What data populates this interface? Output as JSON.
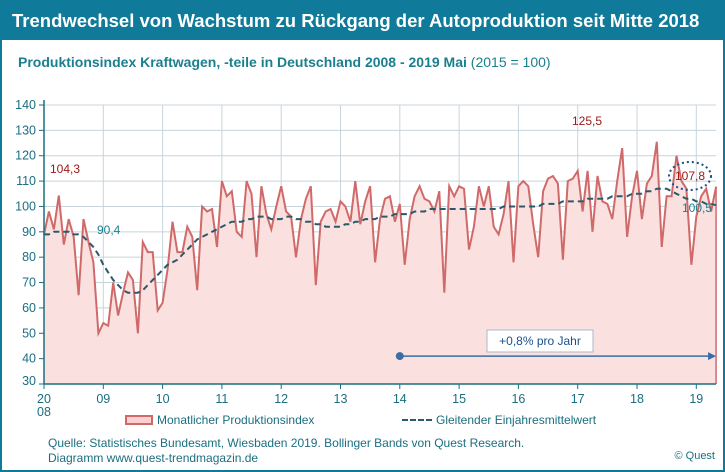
{
  "title": "Trendwechsel von Wachstum zu Rückgang der Autoproduktion seit Mitte 2018",
  "subtitle": {
    "main": "Produktionsindex Kraftwagen, -teile in Deutschland 2008 - 2019 Mai",
    "base": "(2015 = 100)"
  },
  "source_line1": "Quelle: Statistisches Bundesamt, Wiesbaden 2019. Bollinger Bands  von Quest Research.",
  "source_line2": "Diagramm  www.quest-trendmagazin.de",
  "copyright": "© Quest",
  "colors": {
    "frame": "#0f7a99",
    "monthly_line": "#d06a6a",
    "monthly_fill": "#fbe0e0",
    "trend": "#2a5a6a",
    "arrow": "#3a6ea5"
  },
  "chart_data": {
    "type": "line",
    "ylim": [
      30,
      140
    ],
    "yticks": [
      "30",
      "40",
      "50",
      "60",
      "70",
      "80",
      "90",
      "100",
      "110",
      "120",
      "130",
      "140"
    ],
    "xticks": [
      {
        "label": "20",
        "label2": "08"
      },
      {
        "label": "09"
      },
      {
        "label": "10"
      },
      {
        "label": "11"
      },
      {
        "label": "12"
      },
      {
        "label": "13"
      },
      {
        "label": "14"
      },
      {
        "label": "15"
      },
      {
        "label": "16"
      },
      {
        "label": "17"
      },
      {
        "label": "18"
      },
      {
        "label": "19"
      }
    ],
    "x_start": "2008-01",
    "x_end": "2019-05",
    "grid": true,
    "legend_placement": "bottom",
    "series": [
      {
        "name": "Monatlicher Produktionsindex",
        "style": "area",
        "values": [
          89,
          98,
          91,
          104.3,
          85,
          95,
          88,
          65,
          95,
          86,
          78,
          50,
          54,
          53,
          70,
          57,
          66,
          74,
          71,
          50,
          86,
          82,
          82,
          59,
          62,
          75,
          94,
          82,
          82,
          92,
          88,
          67,
          100,
          98,
          99,
          84,
          110,
          104,
          106,
          90,
          88,
          110,
          105,
          80,
          108,
          97,
          91,
          100,
          108,
          98,
          96,
          80,
          95,
          103,
          108,
          69,
          94,
          98,
          99,
          94,
          102,
          100,
          94,
          110,
          93,
          102,
          108,
          78,
          95,
          103,
          104,
          94,
          101,
          77,
          95,
          104,
          108,
          103,
          102,
          98,
          106,
          66,
          108,
          104,
          108,
          107,
          83,
          92,
          108,
          100,
          108,
          92,
          89,
          97,
          110,
          78,
          108,
          110,
          108,
          93,
          80,
          106,
          111,
          112,
          109,
          79,
          110,
          111,
          114,
          98,
          114,
          90,
          112,
          102,
          101,
          95,
          110,
          123,
          88,
          104,
          114,
          95,
          109,
          112,
          125.5,
          84,
          104,
          104,
          120,
          110,
          107,
          77,
          96,
          104,
          107,
          98,
          107.8
        ]
      },
      {
        "name": "Gleitender Einjahresmittelwert",
        "style": "dashed",
        "values": [
          89,
          89,
          90,
          90,
          90,
          90,
          89,
          89,
          88,
          86,
          84,
          81,
          77,
          74,
          71,
          69,
          67,
          66,
          66,
          66,
          67,
          69,
          71,
          73,
          75,
          77,
          78,
          79,
          81,
          83,
          85,
          87,
          88,
          89,
          90,
          91,
          92,
          93,
          94,
          94,
          94,
          95,
          95,
          96,
          96,
          96,
          95,
          95,
          95,
          96,
          96,
          95,
          95,
          94,
          94,
          93,
          93,
          92,
          92,
          92,
          92,
          93,
          93,
          94,
          94,
          95,
          95,
          95,
          96,
          96,
          96,
          97,
          97,
          97,
          97,
          98,
          98,
          98,
          99,
          99,
          99,
          99,
          99,
          99,
          99,
          99,
          99,
          99,
          99,
          99,
          99,
          99,
          99,
          100,
          100,
          100,
          100,
          100,
          100,
          100,
          100,
          101,
          101,
          101,
          101,
          102,
          102,
          102,
          102,
          102,
          103,
          103,
          103,
          103,
          103,
          104,
          104,
          104,
          104,
          105,
          105,
          105,
          106,
          106,
          107,
          107,
          107,
          106,
          105,
          104,
          103,
          103,
          102,
          102,
          101,
          101,
          100.5
        ]
      }
    ],
    "annotations": {
      "first_high": "104,3",
      "trend_2009": "90,4",
      "peak": "125,5",
      "last_value": "107,8",
      "last_trend": "100,5",
      "trend_arrow": {
        "label": "+0,8% pro Jahr",
        "from": 2014,
        "to": "2019-05",
        "value": 41
      }
    }
  }
}
